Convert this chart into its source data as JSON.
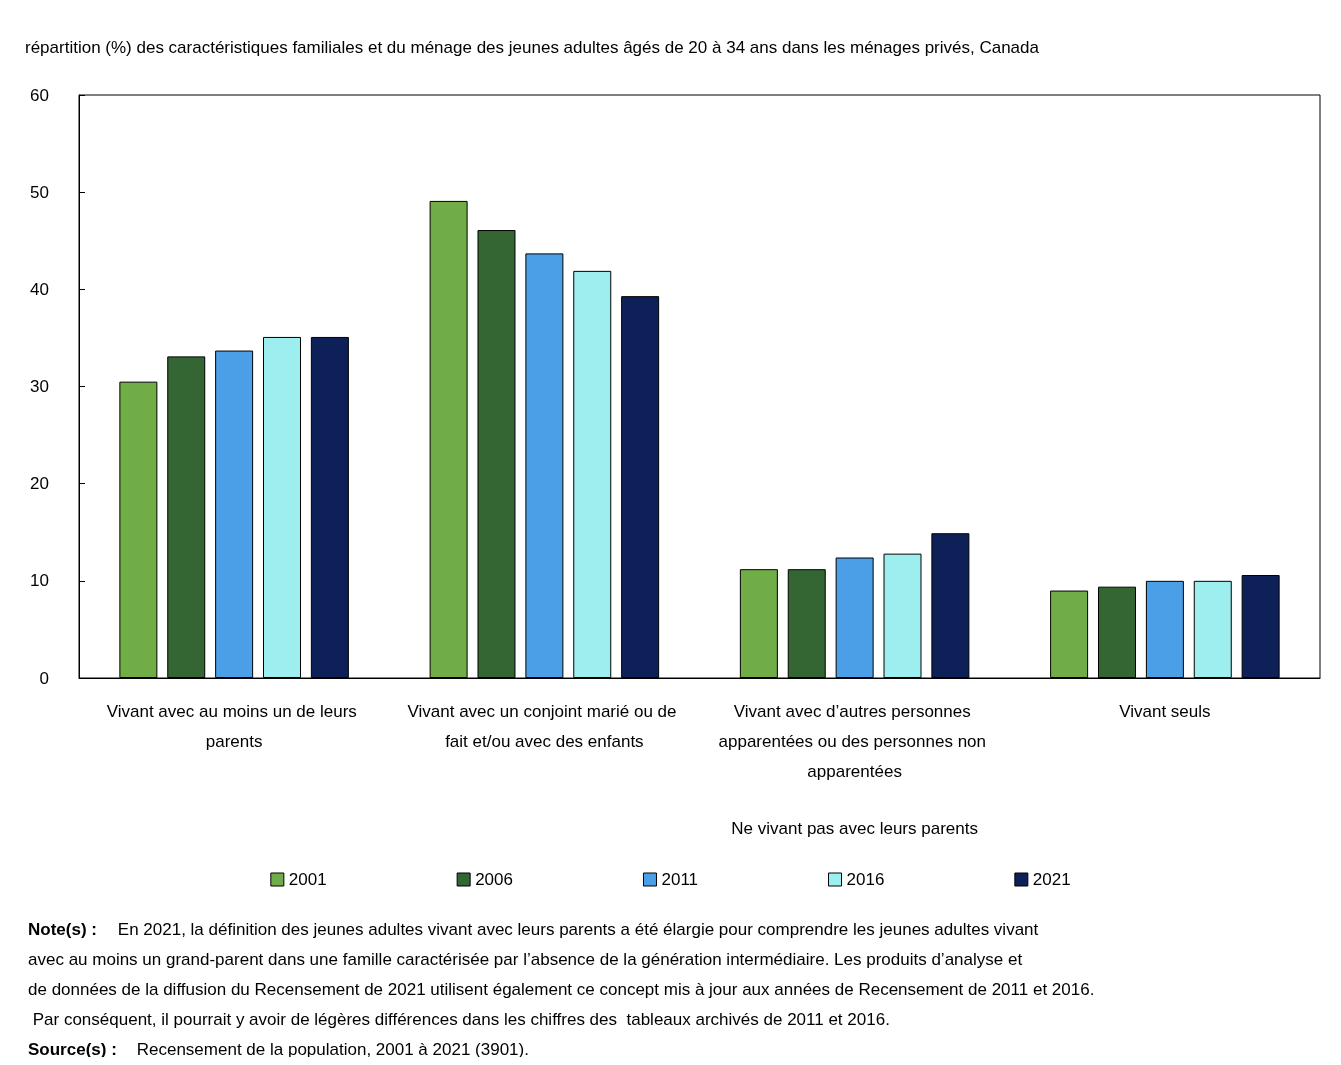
{
  "chart_data": {
    "type": "bar",
    "title": "répartition (%) des caractéristiques familiales et du ménage des jeunes adultes âgés de 20 à 34 ans dans les ménages privés, Canada",
    "xlabel": "Ne vivant pas avec leurs parents",
    "categories": [
      "Vivant avec au moins un de leurs parents",
      "Vivant avec un conjoint marié ou de fait et/ou avec des enfants",
      "Vivant avec d’autres personnes apparentées ou des personnes non apparentées",
      "Vivant seuls"
    ],
    "series": [
      {
        "name": "2001",
        "color": "#70ad47",
        "values": [
          30.5,
          49.1,
          11.2,
          9.0
        ]
      },
      {
        "name": "2006",
        "color": "#336633",
        "values": [
          33.1,
          46.1,
          11.2,
          9.4
        ]
      },
      {
        "name": "2011",
        "color": "#4a9fe6",
        "values": [
          33.7,
          43.7,
          12.4,
          10.0
        ]
      },
      {
        "name": "2016",
        "color": "#9deeee",
        "values": [
          35.1,
          41.9,
          12.8,
          10.0
        ]
      },
      {
        "name": "2021",
        "color": "#0e2058",
        "values": [
          35.1,
          39.3,
          14.9,
          10.6
        ]
      }
    ],
    "ylim": [
      0,
      60
    ],
    "yticks": [
      0,
      10,
      20,
      30,
      40,
      50,
      60
    ],
    "grid": false,
    "legend": "bottom",
    "annotations": [
      "Note(s) : En 2021, la définition des jeunes adultes vivant avec leurs parents a été élargie pour comprendre les jeunes adultes vivant avec au moins un grand-parent dans une famille caractérisée par l’absence de la génération intermédiaire. Les produits d’analyse et de données de la diffusion du Recensement de 2021 utilisent également ce concept mis à jour aux années de Recensement de 2011 et 2016. Par conséquent, il pourrait y avoir de légères différences dans les chiffres des  tableaux archivés de 2011 et 2016.",
      "Source(s) : Recensement de la population, 2001 à 2021 (3901)."
    ]
  }
}
